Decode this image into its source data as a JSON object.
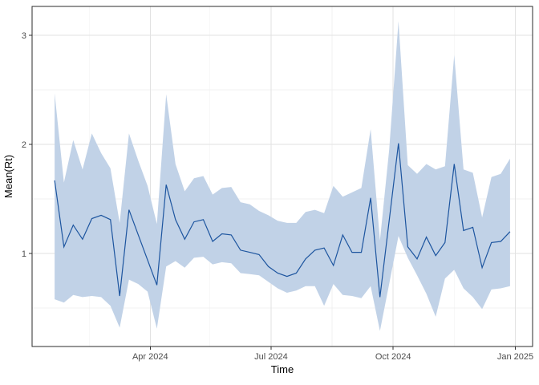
{
  "chart": {
    "xlabel": "Time",
    "ylabel": "Mean(Rt)"
  },
  "colors": {
    "line": "#1d559f",
    "ribbon": "#c1d2e7",
    "grid_major": "#e2e2e2",
    "grid_minor": "#f0f0f0",
    "panel_border": "#2b2b2b",
    "tick_mark": "#333333",
    "background": "#ffffff"
  },
  "chart_data": {
    "type": "line",
    "title": "",
    "xlabel": "Time",
    "ylabel": "Mean(Rt)",
    "legend": "none",
    "grid": "major+minor",
    "x_domain": [
      "2024-01-03",
      "2025-01-14"
    ],
    "y_domain": [
      0.147,
      3.265
    ],
    "x_ticks": [
      {
        "date": "2024-04-01",
        "label": "Apr 2024"
      },
      {
        "date": "2024-07-01",
        "label": "Jul 2024"
      },
      {
        "date": "2024-10-01",
        "label": "Oct 2024"
      },
      {
        "date": "2025-01-01",
        "label": "Jan 2025"
      }
    ],
    "x_minor": [
      "2024-02-15",
      "2024-05-16",
      "2024-08-16",
      "2024-11-16"
    ],
    "y_ticks": [
      {
        "value": 1,
        "label": "1"
      },
      {
        "value": 2,
        "label": "2"
      },
      {
        "value": 3,
        "label": "3"
      }
    ],
    "y_minor": [
      0.5,
      1.5,
      2.5
    ],
    "series_start_date": "2024-01-20",
    "series_step_days": 7,
    "series": [
      {
        "name": "mean_rt",
        "role": "line",
        "values": [
          1.67,
          1.06,
          1.26,
          1.13,
          1.32,
          1.35,
          1.31,
          0.61,
          1.4,
          1.17,
          0.94,
          0.71,
          1.63,
          1.31,
          1.13,
          1.29,
          1.31,
          1.11,
          1.18,
          1.17,
          1.03,
          1.01,
          0.99,
          0.88,
          0.82,
          0.79,
          0.82,
          0.95,
          1.03,
          1.05,
          0.89,
          1.17,
          1.01,
          1.01,
          1.51,
          0.6,
          1.3,
          2.01,
          1.06,
          0.95,
          1.15,
          0.98,
          1.1,
          1.82,
          1.21,
          1.24,
          0.87,
          1.1,
          1.11,
          1.2
        ]
      },
      {
        "name": "ci_lower",
        "role": "ribbon-lower",
        "values": [
          0.58,
          0.55,
          0.62,
          0.6,
          0.61,
          0.6,
          0.52,
          0.32,
          0.76,
          0.72,
          0.65,
          0.31,
          0.88,
          0.93,
          0.87,
          0.96,
          0.97,
          0.9,
          0.92,
          0.91,
          0.82,
          0.81,
          0.8,
          0.74,
          0.68,
          0.64,
          0.66,
          0.7,
          0.7,
          0.52,
          0.72,
          0.62,
          0.61,
          0.59,
          0.7,
          0.29,
          0.72,
          1.16,
          0.96,
          0.8,
          0.63,
          0.42,
          0.77,
          0.85,
          0.68,
          0.6,
          0.49,
          0.67,
          0.68,
          0.7
        ]
      },
      {
        "name": "ci_upper",
        "role": "ribbon-upper",
        "values": [
          2.47,
          1.65,
          2.04,
          1.77,
          2.1,
          1.92,
          1.78,
          1.28,
          2.1,
          1.85,
          1.62,
          1.27,
          2.46,
          1.82,
          1.57,
          1.69,
          1.71,
          1.54,
          1.6,
          1.61,
          1.47,
          1.45,
          1.39,
          1.35,
          1.3,
          1.28,
          1.28,
          1.38,
          1.4,
          1.37,
          1.62,
          1.52,
          1.56,
          1.6,
          2.14,
          1.12,
          1.95,
          3.13,
          1.81,
          1.73,
          1.82,
          1.77,
          1.8,
          2.82,
          1.77,
          1.74,
          1.33,
          1.7,
          1.73,
          1.87
        ]
      }
    ]
  }
}
